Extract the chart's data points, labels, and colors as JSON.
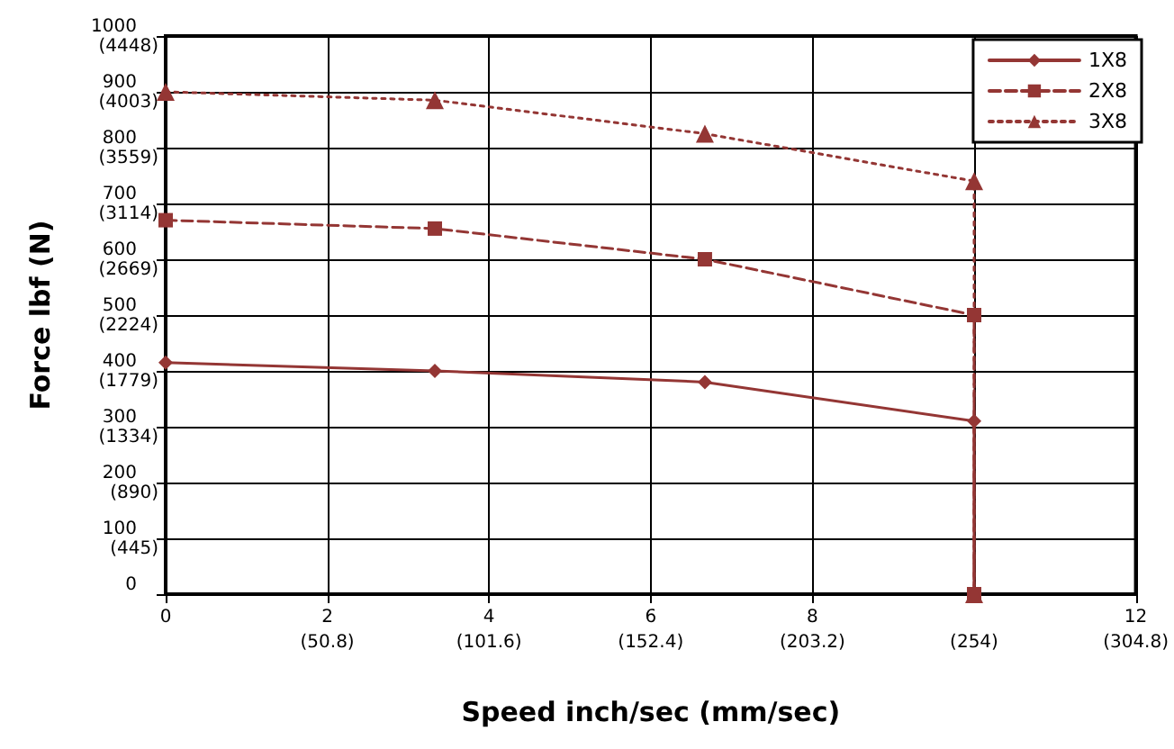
{
  "chart_data": {
    "type": "line",
    "xlabel": "Speed inch/sec (mm/sec)",
    "ylabel": "Force lbf (N)",
    "xlim": [
      0,
      12
    ],
    "xticks": [
      0,
      2,
      4,
      6,
      8,
      {
        "value": 10,
        "label": null
      },
      12
    ],
    "x2lim": [
      0,
      304.8
    ],
    "x2ticks": [
      {
        "value": 50.8,
        "label": "(50.8)"
      },
      {
        "value": 101.6,
        "label": "(101.6)"
      },
      {
        "value": 152.4,
        "label": "(152.4)"
      },
      {
        "value": 203.2,
        "label": "(203.2)"
      },
      {
        "value": 254,
        "label": "(254)"
      },
      {
        "value": 304.8,
        "label": "(304.8)"
      }
    ],
    "ylim": [
      0,
      1000
    ],
    "yticks": [
      0,
      100,
      200,
      300,
      400,
      500,
      600,
      700,
      800,
      900,
      1000
    ],
    "y2lim": [
      0,
      4448
    ],
    "y2ticks": [
      {
        "value": 445,
        "label": "(445)"
      },
      {
        "value": 890,
        "label": "(890)"
      },
      {
        "value": 1334,
        "label": "(1334)"
      },
      {
        "value": 1779,
        "label": "(1779)"
      },
      {
        "value": 2224,
        "label": "(2224)"
      },
      {
        "value": 2669,
        "label": "(2669)"
      },
      {
        "value": 3114,
        "label": "(3114)"
      },
      {
        "value": 3559,
        "label": "(3559)"
      },
      {
        "value": 4003,
        "label": "(4003)"
      },
      {
        "value": 4448,
        "label": "(4448)"
      }
    ],
    "x": [
      0,
      3.33,
      6.67,
      10,
      10
    ],
    "series": [
      {
        "name": "1X8",
        "color": "#943634",
        "values": [
          415,
          400,
          380,
          310,
          0
        ],
        "marker": "diamond",
        "line_style": "solid"
      },
      {
        "name": "2X8",
        "color": "#943634",
        "values": [
          670,
          655,
          600,
          500,
          0
        ],
        "marker": "square",
        "line_style": "dashed"
      },
      {
        "name": "3X8",
        "color": "#943634",
        "values": [
          900,
          885,
          825,
          740,
          0
        ],
        "marker": "triangle",
        "line_style": "dotted"
      }
    ],
    "grid": true,
    "legend": "top right"
  }
}
